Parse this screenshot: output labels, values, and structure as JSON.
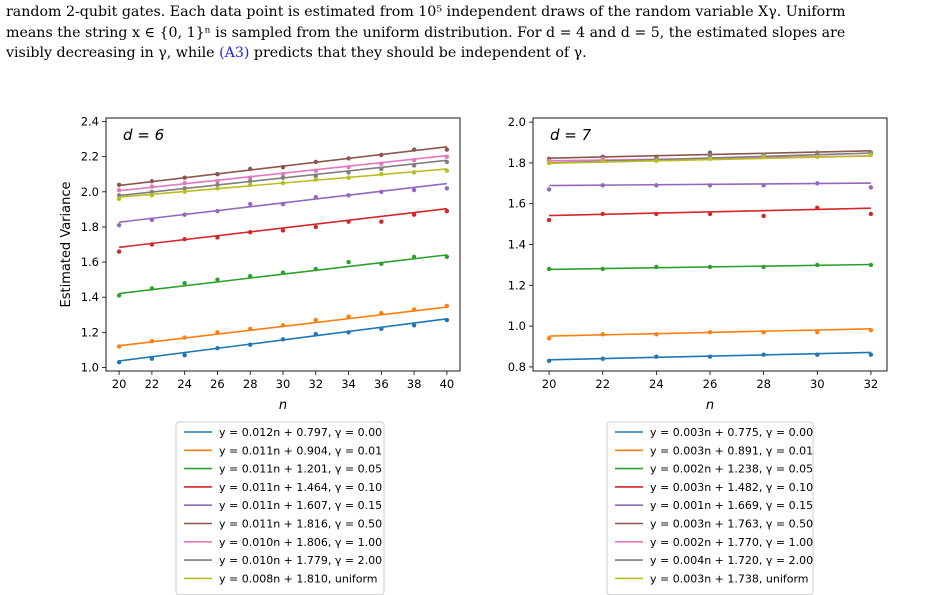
{
  "caption": {
    "line1": "random 2-qubit gates. Each data point is estimated from 10⁵ independent draws of the random variable Xγ. Uniform",
    "line2": "means the string x ∈ {0, 1}ⁿ is sampled from the uniform distribution. For d = 4 and d = 5, the estimated slopes are",
    "line3_pre": "visibly decreasing in γ, while ",
    "line3_ref": "(A3)",
    "line3_post": " predicts that they should be independent of γ."
  },
  "colors": [
    "#1f77b4",
    "#ff7f0e",
    "#2ca02c",
    "#d62728",
    "#9467bd",
    "#8c564b",
    "#e377c2",
    "#7f7f7f",
    "#bcbd22"
  ],
  "chart_data": [
    {
      "type": "scatter",
      "title": "d = 6",
      "xlabel": "n",
      "ylabel": "Estimated Variance",
      "xlim": [
        19.2,
        40.8
      ],
      "ylim": [
        0.98,
        2.42
      ],
      "xticks": [
        20,
        22,
        24,
        26,
        28,
        30,
        32,
        34,
        36,
        38,
        40
      ],
      "yticks": [
        1.0,
        1.2,
        1.4,
        1.6,
        1.8,
        2.0,
        2.2,
        2.4
      ],
      "x": [
        20,
        22,
        24,
        26,
        28,
        30,
        32,
        34,
        36,
        38,
        40
      ],
      "grid": false,
      "legend": "below",
      "series": [
        {
          "name": "y = 0.012n + 0.797, γ = 0.00",
          "slope": 0.012,
          "intercept": 0.797,
          "values": [
            1.03,
            1.05,
            1.07,
            1.11,
            1.13,
            1.16,
            1.19,
            1.2,
            1.22,
            1.24,
            1.27
          ]
        },
        {
          "name": "y = 0.011n + 0.904, γ = 0.01",
          "slope": 0.011,
          "intercept": 0.904,
          "values": [
            1.12,
            1.15,
            1.17,
            1.2,
            1.22,
            1.24,
            1.27,
            1.29,
            1.31,
            1.33,
            1.35
          ]
        },
        {
          "name": "y = 0.011n + 1.201, γ = 0.05",
          "slope": 0.011,
          "intercept": 1.201,
          "values": [
            1.41,
            1.45,
            1.48,
            1.5,
            1.52,
            1.54,
            1.56,
            1.6,
            1.59,
            1.63,
            1.63
          ]
        },
        {
          "name": "y = 0.011n + 1.464, γ = 0.10",
          "slope": 0.011,
          "intercept": 1.464,
          "values": [
            1.66,
            1.7,
            1.73,
            1.74,
            1.77,
            1.78,
            1.8,
            1.83,
            1.83,
            1.87,
            1.89
          ]
        },
        {
          "name": "y = 0.011n + 1.607, γ = 0.15",
          "slope": 0.011,
          "intercept": 1.607,
          "values": [
            1.81,
            1.84,
            1.87,
            1.89,
            1.93,
            1.93,
            1.97,
            1.98,
            2.0,
            2.01,
            2.02
          ]
        },
        {
          "name": "y = 0.011n + 1.816, γ = 0.50",
          "slope": 0.011,
          "intercept": 1.816,
          "values": [
            2.04,
            2.06,
            2.08,
            2.1,
            2.13,
            2.14,
            2.17,
            2.19,
            2.21,
            2.24,
            2.24
          ]
        },
        {
          "name": "y = 0.010n + 1.806, γ = 1.00",
          "slope": 0.01,
          "intercept": 1.806,
          "values": [
            2.01,
            2.03,
            2.05,
            2.06,
            2.08,
            2.1,
            2.12,
            2.14,
            2.16,
            2.18,
            2.2
          ]
        },
        {
          "name": "y = 0.010n + 1.779, γ = 2.00",
          "slope": 0.01,
          "intercept": 1.779,
          "values": [
            1.98,
            2.0,
            2.02,
            2.04,
            2.06,
            2.08,
            2.09,
            2.11,
            2.13,
            2.15,
            2.17
          ]
        },
        {
          "name": "y = 0.008n + 1.810, uniform",
          "slope": 0.008,
          "intercept": 1.81,
          "values": [
            1.96,
            1.98,
            2.0,
            2.02,
            2.04,
            2.05,
            2.07,
            2.08,
            2.1,
            2.11,
            2.12
          ]
        }
      ]
    },
    {
      "type": "scatter",
      "title": "d = 7",
      "xlabel": "n",
      "ylabel": "",
      "xlim": [
        19.4,
        32.6
      ],
      "ylim": [
        0.78,
        2.02
      ],
      "xticks": [
        20,
        22,
        24,
        26,
        28,
        30,
        32
      ],
      "yticks": [
        0.8,
        1.0,
        1.2,
        1.4,
        1.6,
        1.8,
        2.0
      ],
      "x": [
        20,
        22,
        24,
        26,
        28,
        30,
        32
      ],
      "grid": false,
      "legend": "below",
      "series": [
        {
          "name": "y = 0.003n + 0.775, γ = 0.00",
          "slope": 0.003,
          "intercept": 0.775,
          "values": [
            0.83,
            0.84,
            0.85,
            0.85,
            0.86,
            0.86,
            0.86
          ]
        },
        {
          "name": "y = 0.003n + 0.891, γ = 0.01",
          "slope": 0.003,
          "intercept": 0.891,
          "values": [
            0.94,
            0.96,
            0.96,
            0.97,
            0.97,
            0.97,
            0.98
          ]
        },
        {
          "name": "y = 0.002n + 1.238, γ = 0.05",
          "slope": 0.002,
          "intercept": 1.238,
          "values": [
            1.28,
            1.28,
            1.29,
            1.29,
            1.29,
            1.3,
            1.3
          ]
        },
        {
          "name": "y = 0.003n + 1.482, γ = 0.10",
          "slope": 0.003,
          "intercept": 1.482,
          "values": [
            1.52,
            1.55,
            1.55,
            1.55,
            1.54,
            1.58,
            1.55
          ]
        },
        {
          "name": "y = 0.001n + 1.669, γ = 0.15",
          "slope": 0.001,
          "intercept": 1.669,
          "values": [
            1.67,
            1.69,
            1.69,
            1.69,
            1.69,
            1.7,
            1.68
          ]
        },
        {
          "name": "y = 0.003n + 1.763, γ = 0.50",
          "slope": 0.003,
          "intercept": 1.763,
          "values": [
            1.82,
            1.83,
            1.83,
            1.85,
            1.84,
            1.85,
            1.85
          ]
        },
        {
          "name": "y = 0.002n + 1.770, γ = 1.00",
          "slope": 0.002,
          "intercept": 1.77,
          "values": [
            1.81,
            1.82,
            1.82,
            1.83,
            1.84,
            1.84,
            1.84
          ]
        },
        {
          "name": "y = 0.004n + 1.720, γ = 2.00",
          "slope": 0.004,
          "intercept": 1.72,
          "values": [
            1.8,
            1.81,
            1.82,
            1.84,
            1.84,
            1.85,
            1.85
          ]
        },
        {
          "name": "y = 0.003n + 1.738, uniform",
          "slope": 0.003,
          "intercept": 1.738,
          "values": [
            1.8,
            1.81,
            1.81,
            1.82,
            1.83,
            1.83,
            1.84
          ]
        }
      ]
    }
  ]
}
